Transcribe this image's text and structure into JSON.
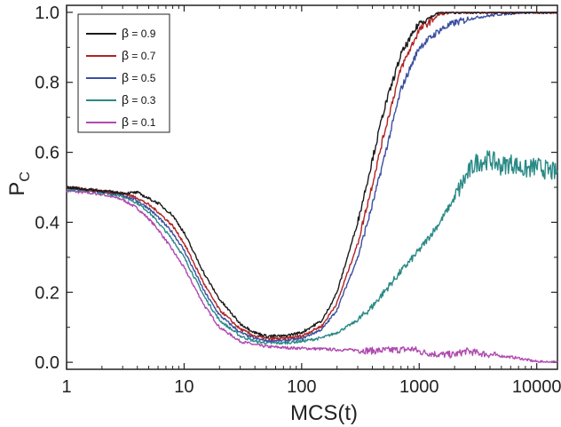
{
  "chart_data": {
    "type": "line",
    "xscale": "log",
    "xlabel": "MCS(t)",
    "ylabel_main": "P",
    "ylabel_sub": "C",
    "xlim": [
      1,
      15000
    ],
    "ylim": [
      -0.02,
      1.02
    ],
    "x_ticks": [
      1,
      10,
      100,
      1000,
      10000
    ],
    "x_tick_labels": [
      "1",
      "10",
      "100",
      "1000",
      "10000"
    ],
    "y_ticks": [
      0.0,
      0.2,
      0.4,
      0.6,
      0.8,
      1.0
    ],
    "y_tick_labels": [
      "0.0",
      "0.2",
      "0.4",
      "0.6",
      "0.8",
      "1.0"
    ],
    "legend_position": "top-left",
    "series": [
      {
        "name": "β = 0.9",
        "label_greek": "β",
        "label_value": "0.9",
        "color": "#1a1a1a",
        "x": [
          1,
          2,
          3,
          4,
          5,
          6,
          8,
          10,
          15,
          20,
          30,
          40,
          50,
          70,
          100,
          150,
          200,
          300,
          400,
          500,
          700,
          1000,
          1500,
          2000,
          5000,
          15000
        ],
        "y": [
          0.5,
          0.49,
          0.483,
          0.485,
          0.468,
          0.455,
          0.42,
          0.37,
          0.25,
          0.18,
          0.11,
          0.085,
          0.075,
          0.075,
          0.085,
          0.12,
          0.2,
          0.4,
          0.58,
          0.72,
          0.88,
          0.97,
          1.0,
          1.0,
          1.0,
          1.0
        ]
      },
      {
        "name": "β = 0.7",
        "label_greek": "β",
        "label_value": "0.7",
        "color": "#b22222",
        "x": [
          1,
          2,
          3,
          4,
          5,
          6,
          8,
          10,
          15,
          20,
          30,
          40,
          50,
          70,
          100,
          150,
          200,
          300,
          400,
          500,
          700,
          1000,
          1500,
          2000,
          5000,
          15000
        ],
        "y": [
          0.5,
          0.49,
          0.483,
          0.47,
          0.45,
          0.43,
          0.39,
          0.34,
          0.22,
          0.15,
          0.095,
          0.075,
          0.068,
          0.068,
          0.075,
          0.105,
          0.17,
          0.34,
          0.51,
          0.65,
          0.84,
          0.95,
          0.995,
          1.0,
          1.0,
          1.0
        ]
      },
      {
        "name": "β = 0.5",
        "label_greek": "β",
        "label_value": "0.5",
        "color": "#3a4fa0",
        "x": [
          1,
          2,
          3,
          4,
          5,
          6,
          8,
          10,
          15,
          20,
          30,
          40,
          50,
          70,
          100,
          150,
          200,
          300,
          400,
          500,
          700,
          1000,
          1500,
          2000,
          3000,
          5000,
          8000,
          15000
        ],
        "y": [
          0.5,
          0.488,
          0.478,
          0.462,
          0.44,
          0.415,
          0.37,
          0.32,
          0.2,
          0.135,
          0.085,
          0.068,
          0.062,
          0.062,
          0.068,
          0.095,
          0.15,
          0.3,
          0.45,
          0.58,
          0.78,
          0.9,
          0.95,
          0.97,
          0.985,
          0.995,
          1.0,
          1.0
        ]
      },
      {
        "name": "β = 0.3",
        "label_greek": "β",
        "label_value": "0.3",
        "color": "#2a8a86",
        "x": [
          1,
          2,
          3,
          4,
          5,
          6,
          8,
          10,
          15,
          20,
          30,
          40,
          50,
          70,
          100,
          150,
          200,
          300,
          400,
          500,
          700,
          1000,
          1500,
          2000,
          2500,
          3000,
          4000,
          5000,
          6000,
          8000,
          10000,
          12000,
          15000
        ],
        "y": [
          0.495,
          0.485,
          0.475,
          0.455,
          0.43,
          0.4,
          0.35,
          0.3,
          0.185,
          0.12,
          0.075,
          0.06,
          0.055,
          0.055,
          0.06,
          0.07,
          0.085,
          0.12,
          0.16,
          0.2,
          0.26,
          0.32,
          0.4,
          0.47,
          0.53,
          0.57,
          0.58,
          0.56,
          0.57,
          0.55,
          0.56,
          0.55,
          0.54
        ]
      },
      {
        "name": "β = 0.1",
        "label_greek": "β",
        "label_value": "0.1",
        "color": "#b04ab0",
        "x": [
          1,
          2,
          3,
          4,
          5,
          6,
          8,
          10,
          15,
          20,
          30,
          40,
          50,
          70,
          100,
          150,
          200,
          300,
          400,
          500,
          700,
          900,
          1000,
          1500,
          2000,
          2500,
          3000,
          4000,
          5000,
          6000,
          7000,
          8000,
          10000,
          15000
        ],
        "y": [
          0.49,
          0.48,
          0.465,
          0.44,
          0.41,
          0.38,
          0.32,
          0.27,
          0.16,
          0.1,
          0.06,
          0.05,
          0.045,
          0.042,
          0.04,
          0.038,
          0.036,
          0.035,
          0.033,
          0.034,
          0.036,
          0.038,
          0.03,
          0.022,
          0.022,
          0.032,
          0.028,
          0.022,
          0.018,
          0.015,
          0.012,
          0.008,
          0.002,
          0.0
        ]
      }
    ]
  }
}
